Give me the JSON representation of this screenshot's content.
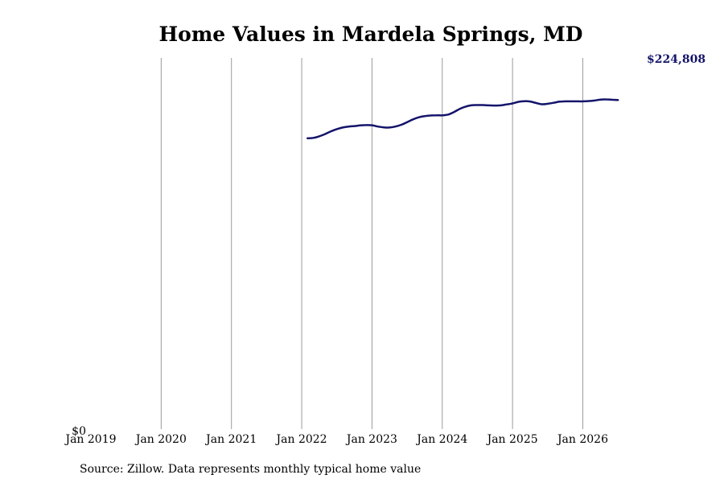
{
  "chart_data": {
    "type": "line",
    "title": "Home Values in Mardela Springs, MD",
    "xlabel": "",
    "ylabel": "",
    "source_note": "Source: Zillow. Data represents monthly typical home value",
    "x_ticks": [
      "Jan 2019",
      "Jan 2020",
      "Jan 2021",
      "Jan 2022",
      "Jan 2023",
      "Jan 2024",
      "Jan 2025",
      "Jan 2026"
    ],
    "y_tick_label": "$0",
    "ylim": [
      0,
      224808
    ],
    "xlim": [
      "2019-01",
      "2026-10"
    ],
    "grid": "vertical",
    "line_color": "#14146b",
    "grid_color": "#9a9a9a",
    "end_label": "$224,808",
    "series": [
      {
        "x": [
          "2022-02",
          "2022-03",
          "2022-04",
          "2022-05",
          "2022-06",
          "2022-07",
          "2022-08",
          "2022-09",
          "2022-10",
          "2022-11",
          "2022-12",
          "2023-01",
          "2023-02",
          "2023-03",
          "2023-04",
          "2023-05",
          "2023-06",
          "2023-07",
          "2023-08",
          "2023-09",
          "2023-10",
          "2023-11",
          "2023-12",
          "2024-01",
          "2024-02",
          "2024-03",
          "2024-04",
          "2024-05",
          "2024-06",
          "2024-07",
          "2024-08",
          "2024-09",
          "2024-10",
          "2024-11",
          "2024-12",
          "2025-01",
          "2025-02",
          "2025-03",
          "2025-04",
          "2025-05",
          "2025-06",
          "2025-07",
          "2025-08",
          "2025-09",
          "2025-10",
          "2025-11",
          "2025-12",
          "2026-01",
          "2026-02",
          "2026-03",
          "2026-04",
          "2026-05",
          "2026-06",
          "2026-07"
        ],
        "values": [
          177400,
          177600,
          178600,
          180000,
          181700,
          183000,
          184000,
          184600,
          184900,
          185300,
          185500,
          185400,
          184600,
          184100,
          184000,
          184600,
          185700,
          187300,
          189000,
          190300,
          191000,
          191400,
          191500,
          191500,
          192000,
          193500,
          195500,
          196900,
          197700,
          197800,
          197800,
          197600,
          197500,
          197600,
          198200,
          198800,
          199800,
          200200,
          200000,
          199100,
          198300,
          198600,
          199200,
          199900,
          200100,
          200100,
          200100,
          200100,
          200300,
          200600,
          201200,
          201300,
          201100,
          200900
        ]
      }
    ]
  }
}
